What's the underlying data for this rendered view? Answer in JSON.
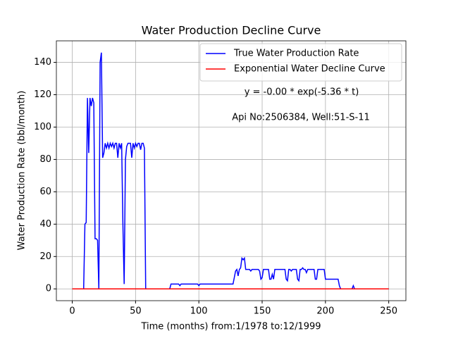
{
  "chart_data": {
    "type": "line",
    "title": "Water Production Decline Curve",
    "x_label": "Time (months) from:1/1978 to:12/1999",
    "y_label": "Water Production Rate (bbl/month)",
    "annotations": [
      "y = -0.00 * exp(-5.36 * t)",
      "Api No:2506384, Well:51-S-11"
    ],
    "xlim": [
      -12.55,
      263.55
    ],
    "xticks": [
      0,
      50,
      100,
      150,
      200,
      250
    ],
    "ylim": [
      -7.3,
      153.3
    ],
    "yticks": [
      0,
      20,
      40,
      60,
      80,
      100,
      120,
      140
    ],
    "grid": true,
    "legend": "upper right",
    "x": [
      0,
      1,
      2,
      3,
      4,
      5,
      6,
      7,
      8,
      9,
      10,
      11,
      12,
      13,
      14,
      15,
      16,
      17,
      18,
      19,
      20,
      21,
      22,
      23,
      24,
      25,
      26,
      27,
      28,
      29,
      30,
      31,
      32,
      33,
      34,
      35,
      36,
      37,
      38,
      39,
      40,
      41,
      42,
      43,
      44,
      45,
      46,
      47,
      48,
      49,
      50,
      51,
      52,
      53,
      54,
      55,
      56,
      57,
      58,
      59,
      60,
      61,
      62,
      63,
      64,
      65,
      66,
      67,
      68,
      69,
      70,
      71,
      72,
      73,
      74,
      75,
      76,
      77,
      78,
      79,
      80,
      81,
      82,
      83,
      84,
      85,
      86,
      87,
      88,
      89,
      90,
      91,
      92,
      93,
      94,
      95,
      96,
      97,
      98,
      99,
      100,
      101,
      102,
      103,
      104,
      105,
      106,
      107,
      108,
      109,
      110,
      111,
      112,
      113,
      114,
      115,
      116,
      117,
      118,
      119,
      120,
      121,
      122,
      123,
      124,
      125,
      126,
      127,
      128,
      129,
      130,
      131,
      132,
      133,
      134,
      135,
      136,
      137,
      138,
      139,
      140,
      141,
      142,
      143,
      144,
      145,
      146,
      147,
      148,
      149,
      150,
      151,
      152,
      153,
      154,
      155,
      156,
      157,
      158,
      159,
      160,
      161,
      162,
      163,
      164,
      165,
      166,
      167,
      168,
      169,
      170,
      171,
      172,
      173,
      174,
      175,
      176,
      177,
      178,
      179,
      180,
      181,
      182,
      183,
      184,
      185,
      186,
      187,
      188,
      189,
      190,
      191,
      192,
      193,
      194,
      195,
      196,
      197,
      198,
      199,
      200,
      201,
      202,
      203,
      204,
      205,
      206,
      207,
      208,
      209,
      210,
      211,
      212,
      213,
      214,
      215,
      216,
      217,
      218,
      219,
      220,
      221,
      222,
      223,
      224,
      225,
      226,
      227,
      228,
      229,
      230,
      231,
      232,
      233,
      234,
      235,
      236,
      237,
      238,
      239,
      240,
      241,
      242,
      243,
      244,
      245,
      246,
      247,
      248,
      249,
      250
    ],
    "series": [
      {
        "name": "True Water Production Rate",
        "color": "#0000ff",
        "values": [
          0,
          0,
          0,
          0,
          0,
          0,
          0,
          0,
          0,
          0,
          40,
          41,
          118,
          84,
          118,
          113,
          118,
          115,
          31,
          31,
          30,
          0,
          140,
          146,
          81,
          84,
          90,
          87,
          90,
          87,
          90,
          88,
          90,
          87,
          90,
          90,
          81,
          90,
          87,
          90,
          40,
          3,
          80,
          88,
          90,
          90,
          90,
          81,
          90,
          87,
          90,
          88,
          90,
          90,
          86,
          90,
          90,
          87,
          0,
          0,
          0,
          0,
          0,
          0,
          0,
          0,
          0,
          0,
          0,
          0,
          0,
          0,
          0,
          0,
          0,
          0,
          0,
          0,
          3,
          3,
          3,
          3,
          3,
          3,
          3,
          2,
          3,
          3,
          3,
          3,
          3,
          3,
          3,
          3,
          3,
          3,
          3,
          3,
          3,
          3,
          2,
          3,
          3,
          3,
          3,
          3,
          3,
          3,
          3,
          3,
          3,
          3,
          3,
          3,
          3,
          3,
          3,
          3,
          3,
          3,
          3,
          3,
          3,
          3,
          3,
          3,
          3,
          3,
          7,
          11,
          12,
          8,
          12,
          13,
          19,
          18,
          19,
          12,
          12,
          12,
          12,
          11,
          12,
          12,
          12,
          12,
          12,
          12,
          11,
          6,
          7,
          12,
          12,
          12,
          12,
          12,
          6,
          6,
          9,
          6,
          12,
          12,
          12,
          12,
          12,
          12,
          12,
          12,
          12,
          6,
          5,
          12,
          12,
          11,
          12,
          12,
          12,
          12,
          6,
          5,
          12,
          12,
          13,
          12,
          12,
          10,
          12,
          12,
          12,
          12,
          12,
          12,
          6,
          6,
          12,
          12,
          12,
          12,
          12,
          12,
          6,
          6,
          6,
          6,
          6,
          6,
          6,
          6,
          6,
          6,
          6,
          2,
          0,
          0,
          0,
          0,
          0,
          0,
          0,
          0,
          0,
          0,
          2,
          0,
          0,
          0,
          0,
          0,
          0,
          0,
          0,
          0,
          0,
          0,
          0,
          0,
          0,
          0,
          0,
          0,
          0,
          0,
          0,
          0,
          0,
          0,
          0,
          0,
          0,
          0,
          0
        ]
      },
      {
        "name": "Exponential Water Decline Curve",
        "color": "#ff0000",
        "values": [
          0,
          0,
          0,
          0,
          0,
          0,
          0,
          0,
          0,
          0,
          0,
          0,
          0,
          0,
          0,
          0,
          0,
          0,
          0,
          0,
          0,
          0,
          0,
          0,
          0,
          0,
          0,
          0,
          0,
          0,
          0,
          0,
          0,
          0,
          0,
          0,
          0,
          0,
          0,
          0,
          0,
          0,
          0,
          0,
          0,
          0,
          0,
          0,
          0,
          0,
          0,
          0,
          0,
          0,
          0,
          0,
          0,
          0,
          0,
          0,
          0,
          0,
          0,
          0,
          0,
          0,
          0,
          0,
          0,
          0,
          0,
          0,
          0,
          0,
          0,
          0,
          0,
          0,
          0,
          0,
          0,
          0,
          0,
          0,
          0,
          0,
          0,
          0,
          0,
          0,
          0,
          0,
          0,
          0,
          0,
          0,
          0,
          0,
          0,
          0,
          0,
          0,
          0,
          0,
          0,
          0,
          0,
          0,
          0,
          0,
          0,
          0,
          0,
          0,
          0,
          0,
          0,
          0,
          0,
          0,
          0,
          0,
          0,
          0,
          0,
          0,
          0,
          0,
          0,
          0,
          0,
          0,
          0,
          0,
          0,
          0,
          0,
          0,
          0,
          0,
          0,
          0,
          0,
          0,
          0,
          0,
          0,
          0,
          0,
          0,
          0,
          0,
          0,
          0,
          0,
          0,
          0,
          0,
          0,
          0,
          0,
          0,
          0,
          0,
          0,
          0,
          0,
          0,
          0,
          0,
          0,
          0,
          0,
          0,
          0,
          0,
          0,
          0,
          0,
          0,
          0,
          0,
          0,
          0,
          0,
          0,
          0,
          0,
          0,
          0,
          0,
          0,
          0,
          0,
          0,
          0,
          0,
          0,
          0,
          0,
          0,
          0,
          0,
          0,
          0,
          0,
          0,
          0,
          0,
          0,
          0,
          0,
          0,
          0,
          0,
          0,
          0,
          0,
          0,
          0,
          0,
          0,
          0,
          0,
          0,
          0,
          0,
          0,
          0,
          0,
          0,
          0,
          0,
          0,
          0,
          0,
          0,
          0,
          0,
          0,
          0,
          0,
          0,
          0,
          0,
          0,
          0,
          0,
          0,
          0,
          0
        ]
      }
    ]
  }
}
